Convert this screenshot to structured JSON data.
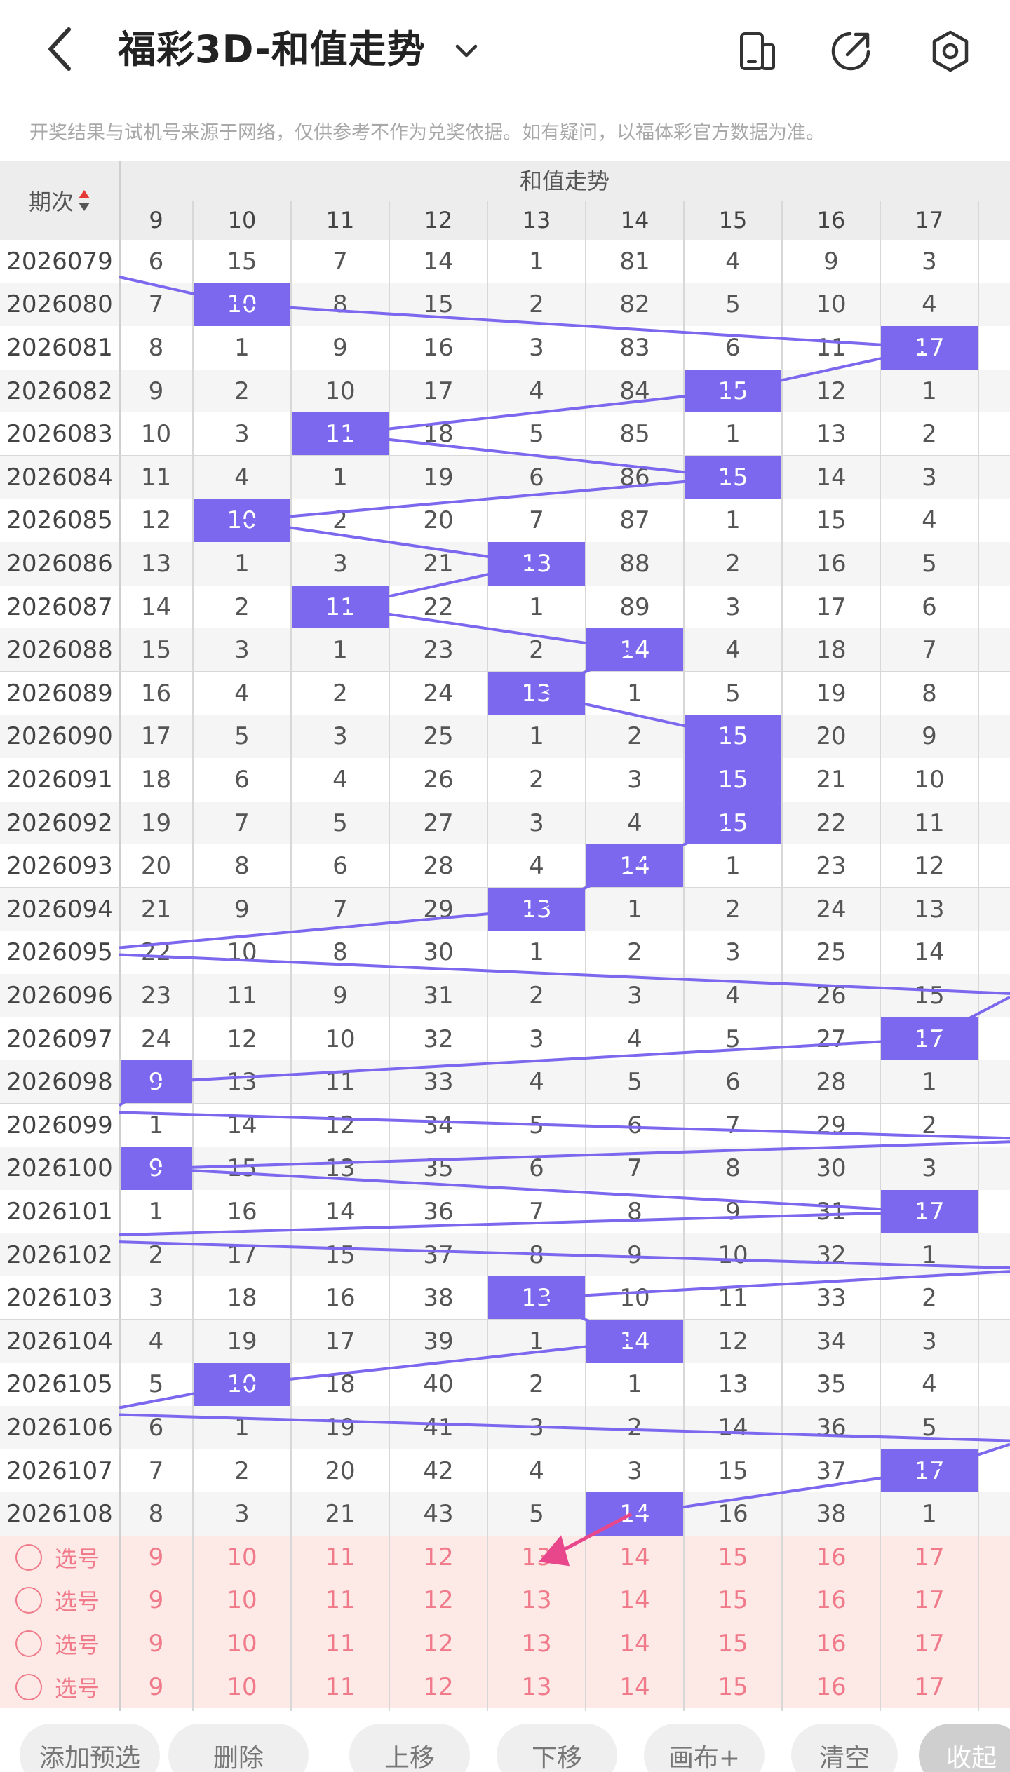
{
  "header": {
    "title": "福彩3D-和值走势",
    "back_icon": "back-icon",
    "dropdown_icon": "chevron-down-icon",
    "icons": [
      "device-icon",
      "share-icon",
      "settings-icon"
    ],
    "notice": "开奖结果与试机号来源于网络，仅供参考不作为兑奖依据。如有疑问，以福体彩官方数据为准。"
  },
  "table": {
    "period_header": "期次",
    "group_title": "和值走势",
    "columns": [
      "9",
      "10",
      "11",
      "12",
      "13",
      "14",
      "15",
      "16",
      "17"
    ],
    "accent_color": "#7b68ee",
    "rows": [
      {
        "period": "2026079",
        "values": [
          "6",
          "15",
          "7",
          "14",
          "1",
          "81",
          "4",
          "9",
          "3"
        ],
        "hit": -1
      },
      {
        "period": "2026080",
        "values": [
          "7",
          "10",
          "8",
          "15",
          "2",
          "82",
          "5",
          "10",
          "4"
        ],
        "hit": 1
      },
      {
        "period": "2026081",
        "values": [
          "8",
          "1",
          "9",
          "16",
          "3",
          "83",
          "6",
          "11",
          "17"
        ],
        "hit": 8
      },
      {
        "period": "2026082",
        "values": [
          "9",
          "2",
          "10",
          "17",
          "4",
          "84",
          "15",
          "12",
          "1"
        ],
        "hit": 6
      },
      {
        "period": "2026083",
        "values": [
          "10",
          "3",
          "11",
          "18",
          "5",
          "85",
          "1",
          "13",
          "2"
        ],
        "hit": 2
      },
      {
        "period": "2026084",
        "values": [
          "11",
          "4",
          "1",
          "19",
          "6",
          "86",
          "15",
          "14",
          "3"
        ],
        "hit": 6
      },
      {
        "period": "2026085",
        "values": [
          "12",
          "10",
          "2",
          "20",
          "7",
          "87",
          "1",
          "15",
          "4"
        ],
        "hit": 1
      },
      {
        "period": "2026086",
        "values": [
          "13",
          "1",
          "3",
          "21",
          "13",
          "88",
          "2",
          "16",
          "5"
        ],
        "hit": 4
      },
      {
        "period": "2026087",
        "values": [
          "14",
          "2",
          "11",
          "22",
          "1",
          "89",
          "3",
          "17",
          "6"
        ],
        "hit": 2
      },
      {
        "period": "2026088",
        "values": [
          "15",
          "3",
          "1",
          "23",
          "2",
          "14",
          "4",
          "18",
          "7"
        ],
        "hit": 5
      },
      {
        "period": "2026089",
        "values": [
          "16",
          "4",
          "2",
          "24",
          "13",
          "1",
          "5",
          "19",
          "8"
        ],
        "hit": 4
      },
      {
        "period": "2026090",
        "values": [
          "17",
          "5",
          "3",
          "25",
          "1",
          "2",
          "15",
          "20",
          "9"
        ],
        "hit": 6
      },
      {
        "period": "2026091",
        "values": [
          "18",
          "6",
          "4",
          "26",
          "2",
          "3",
          "15",
          "21",
          "10"
        ],
        "hit": 6
      },
      {
        "period": "2026092",
        "values": [
          "19",
          "7",
          "5",
          "27",
          "3",
          "4",
          "15",
          "22",
          "11"
        ],
        "hit": 6
      },
      {
        "period": "2026093",
        "values": [
          "20",
          "8",
          "6",
          "28",
          "4",
          "14",
          "1",
          "23",
          "12"
        ],
        "hit": 5
      },
      {
        "period": "2026094",
        "values": [
          "21",
          "9",
          "7",
          "29",
          "13",
          "1",
          "2",
          "24",
          "13"
        ],
        "hit": 4
      },
      {
        "period": "2026095",
        "values": [
          "22",
          "10",
          "8",
          "30",
          "1",
          "2",
          "3",
          "25",
          "14"
        ],
        "hit": -1
      },
      {
        "period": "2026096",
        "values": [
          "23",
          "11",
          "9",
          "31",
          "2",
          "3",
          "4",
          "26",
          "15"
        ],
        "hit": -1
      },
      {
        "period": "2026097",
        "values": [
          "24",
          "12",
          "10",
          "32",
          "3",
          "4",
          "5",
          "27",
          "17"
        ],
        "hit": 8
      },
      {
        "period": "2026098",
        "values": [
          "9",
          "13",
          "11",
          "33",
          "4",
          "5",
          "6",
          "28",
          "1"
        ],
        "hit": 0
      },
      {
        "period": "2026099",
        "values": [
          "1",
          "14",
          "12",
          "34",
          "5",
          "6",
          "7",
          "29",
          "2"
        ],
        "hit": -1
      },
      {
        "period": "2026100",
        "values": [
          "9",
          "15",
          "13",
          "35",
          "6",
          "7",
          "8",
          "30",
          "3"
        ],
        "hit": 0
      },
      {
        "period": "2026101",
        "values": [
          "1",
          "16",
          "14",
          "36",
          "7",
          "8",
          "9",
          "31",
          "17"
        ],
        "hit": 8
      },
      {
        "period": "2026102",
        "values": [
          "2",
          "17",
          "15",
          "37",
          "8",
          "9",
          "10",
          "32",
          "1"
        ],
        "hit": -1
      },
      {
        "period": "2026103",
        "values": [
          "3",
          "18",
          "16",
          "38",
          "13",
          "10",
          "11",
          "33",
          "2"
        ],
        "hit": 4
      },
      {
        "period": "2026104",
        "values": [
          "4",
          "19",
          "17",
          "39",
          "1",
          "14",
          "12",
          "34",
          "3"
        ],
        "hit": 5
      },
      {
        "period": "2026105",
        "values": [
          "5",
          "10",
          "18",
          "40",
          "2",
          "1",
          "13",
          "35",
          "4"
        ],
        "hit": 1
      },
      {
        "period": "2026106",
        "values": [
          "6",
          "1",
          "19",
          "41",
          "3",
          "2",
          "14",
          "36",
          "5"
        ],
        "hit": -1
      },
      {
        "period": "2026107",
        "values": [
          "7",
          "2",
          "20",
          "42",
          "4",
          "3",
          "15",
          "37",
          "17"
        ],
        "hit": 8
      },
      {
        "period": "2026108",
        "values": [
          "8",
          "3",
          "21",
          "43",
          "5",
          "14",
          "16",
          "38",
          "1"
        ],
        "hit": 5
      }
    ],
    "pick_label": "选号",
    "pick_rows": 4
  },
  "toolbar": {
    "buttons": [
      "添加预选",
      "删除",
      "上移",
      "下移",
      "画布+",
      "清空",
      "收起"
    ]
  }
}
